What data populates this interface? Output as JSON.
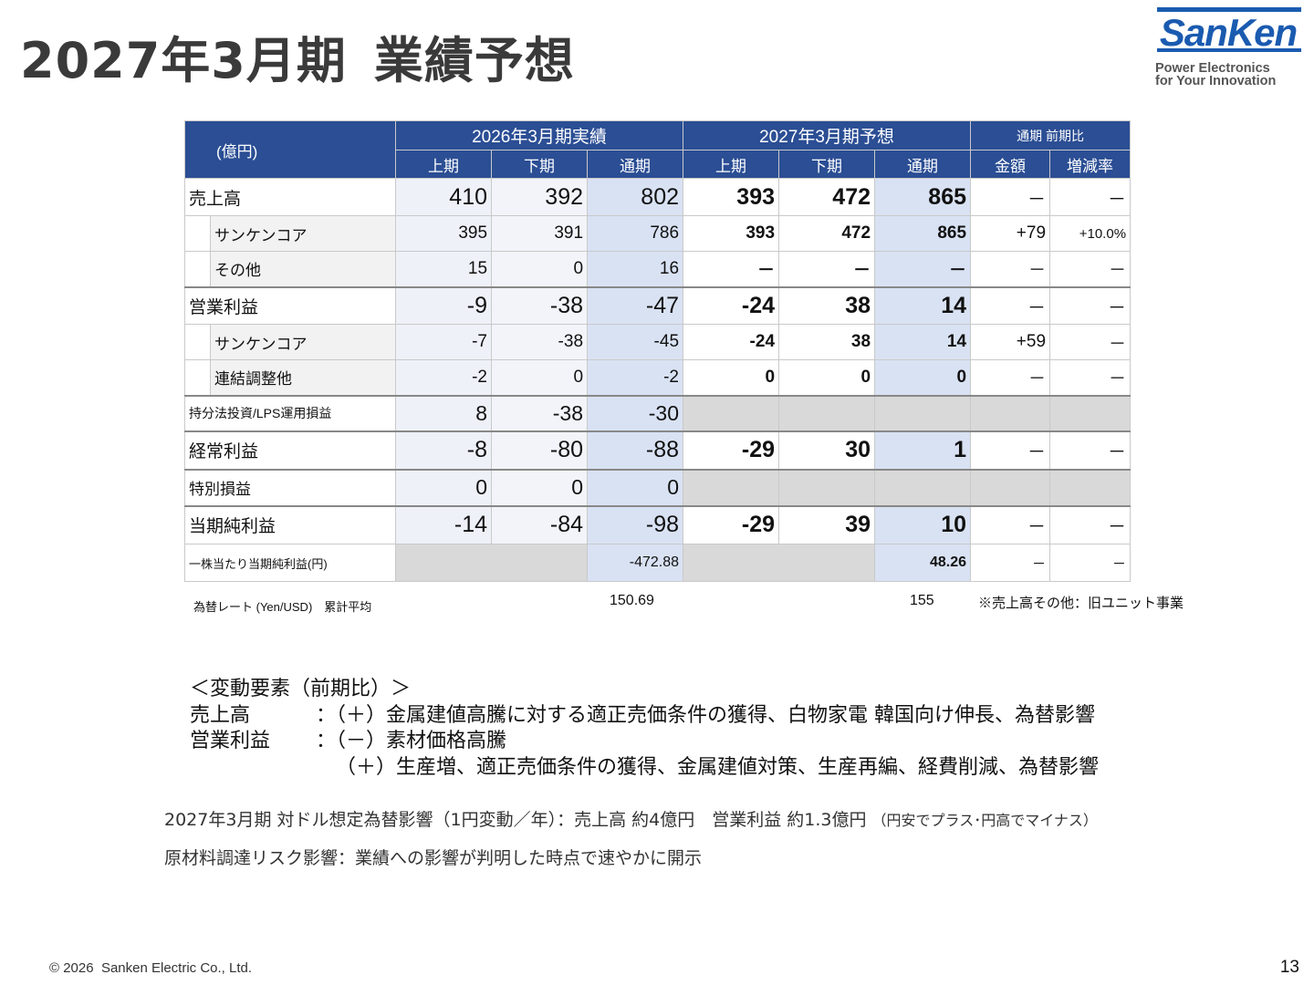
{
  "page": {
    "title_period": "2027年3月期",
    "title_main": "業績予想",
    "page_number": "13",
    "copyright": "© 2026",
    "company": "Sanken Electric Co., Ltd."
  },
  "logo": {
    "wordmark": "SanKen",
    "tagline1": "Power Electronics",
    "tagline2": "for Your Innovation",
    "brand_color": "#1a5bb0"
  },
  "table": {
    "unit": "(億円)",
    "group1": "2026年3月期実績",
    "group2": "2027年3月期予想",
    "group3": "通期 前期比",
    "sub_h1": "上期",
    "sub_h2": "下期",
    "sub_full": "通期",
    "sub_amount": "金額",
    "sub_rate": "増減率",
    "rows": [
      {
        "label": "売上高",
        "v": [
          "410",
          "392",
          "802",
          "393",
          "472",
          "865"
        ],
        "yoy_amt": "－",
        "yoy_rate": "－"
      },
      {
        "label": "サンケンコア",
        "v": [
          "395",
          "391",
          "786",
          "393",
          "472",
          "865"
        ],
        "yoy_amt": "+79",
        "yoy_rate": "+10.0%"
      },
      {
        "label": "その他",
        "v": [
          "15",
          "0",
          "16",
          "－",
          "－",
          "－"
        ],
        "yoy_amt": "－",
        "yoy_rate": "－"
      },
      {
        "label": "営業利益",
        "v": [
          "-9",
          "-38",
          "-47",
          "-24",
          "38",
          "14"
        ],
        "yoy_amt": "－",
        "yoy_rate": "－"
      },
      {
        "label": "サンケンコア",
        "v": [
          "-7",
          "-38",
          "-45",
          "-24",
          "38",
          "14"
        ],
        "yoy_amt": "+59",
        "yoy_rate": "－"
      },
      {
        "label": "連結調整他",
        "v": [
          "-2",
          "0",
          "-2",
          "0",
          "0",
          "0"
        ],
        "yoy_amt": "－",
        "yoy_rate": "－"
      },
      {
        "label": "持分法投資/LPS運用損益",
        "v": [
          "8",
          "-38",
          "-30"
        ]
      },
      {
        "label": "経常利益",
        "v": [
          "-8",
          "-80",
          "-88",
          "-29",
          "30",
          "1"
        ],
        "yoy_amt": "－",
        "yoy_rate": "－"
      },
      {
        "label": "特別損益",
        "v": [
          "0",
          "0",
          "0"
        ]
      },
      {
        "label": "当期純利益",
        "v": [
          "-14",
          "-84",
          "-98",
          "-29",
          "39",
          "10"
        ],
        "yoy_amt": "－",
        "yoy_rate": "－"
      },
      {
        "label": "一株当たり当期純利益(円)",
        "full_actual": "-472.88",
        "full_forecast": "48.26",
        "yoy_amt": "－",
        "yoy_rate": "－"
      }
    ]
  },
  "fx": {
    "label": "為替レート (Yen/USD)　累計平均",
    "actual": "150.69",
    "forecast": "155",
    "note": "※売上高その他：旧ユニット事業"
  },
  "changes": {
    "heading": "＜変動要素（前期比）＞",
    "sales_label": "売上高",
    "sales_text": "：（＋）金属建値高騰に対する適正売価条件の獲得、白物家電 韓国向け伸長、為替影響",
    "op_label": "営業利益",
    "op_text1": "：（－）素材価格高騰",
    "op_text2": "（＋）生産増、適正売価条件の獲得、金属建値対策、生産再編、経費削減、為替影響"
  },
  "notes": {
    "fx_sensitivity": "2027年3月期 対ドル想定為替影響（1円変動／年）：売上高 約4億円　営業利益 約1.3億円",
    "fx_sensitivity_small": "（円安でプラス･円高でマイナス）",
    "risk": "原材料調達リスク影響：業績への影響が判明した時点で速やかに開示"
  }
}
